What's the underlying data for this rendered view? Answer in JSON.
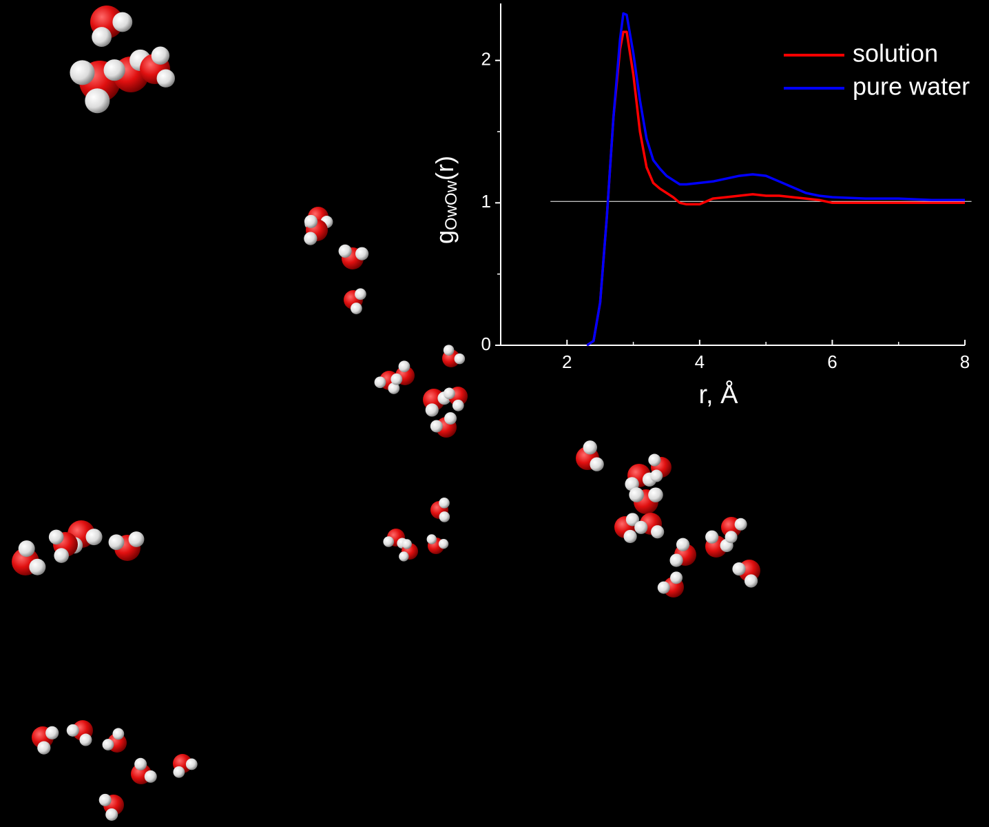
{
  "chart_data": {
    "type": "line",
    "xlabel": "r, Å",
    "ylabel": {
      "main": "g",
      "sub": "OwOw",
      "tail": "(r)"
    },
    "x": [
      2.3,
      2.4,
      2.5,
      2.6,
      2.7,
      2.8,
      2.85,
      2.9,
      3.0,
      3.1,
      3.2,
      3.3,
      3.4,
      3.5,
      3.6,
      3.7,
      3.8,
      4.0,
      4.2,
      4.4,
      4.6,
      4.8,
      5.0,
      5.2,
      5.4,
      5.6,
      5.8,
      6.0,
      6.5,
      7.0,
      7.5,
      8.0
    ],
    "series": [
      {
        "name": "solution",
        "color": "#ff0000",
        "values": [
          0,
          0.03,
          0.3,
          0.9,
          1.6,
          2.08,
          2.2,
          2.2,
          1.9,
          1.5,
          1.25,
          1.14,
          1.1,
          1.07,
          1.04,
          1.0,
          0.99,
          0.99,
          1.03,
          1.04,
          1.05,
          1.06,
          1.05,
          1.05,
          1.04,
          1.03,
          1.02,
          1.0,
          1.0,
          1.0,
          1.0,
          1.0
        ]
      },
      {
        "name": "pure water",
        "color": "#0000ff",
        "values": [
          0,
          0.03,
          0.3,
          0.9,
          1.6,
          2.15,
          2.33,
          2.32,
          2.05,
          1.72,
          1.45,
          1.3,
          1.24,
          1.19,
          1.16,
          1.13,
          1.13,
          1.14,
          1.15,
          1.17,
          1.19,
          1.2,
          1.19,
          1.15,
          1.11,
          1.07,
          1.05,
          1.04,
          1.03,
          1.03,
          1.02,
          1.02
        ]
      }
    ],
    "xlim": [
      1,
      8
    ],
    "xticks": [
      2,
      4,
      6,
      8
    ],
    "xminorticks": [
      3,
      5,
      7
    ],
    "ylim": [
      0,
      2.4
    ],
    "yticks": [
      0,
      1,
      2
    ],
    "yminorticks": [
      0.5,
      1.5
    ],
    "reference_line": {
      "y": 1.01,
      "x": [
        1.75,
        8.1
      ]
    },
    "legend": "top-right",
    "background": "#000000",
    "axis_color": "#ffffff"
  }
}
